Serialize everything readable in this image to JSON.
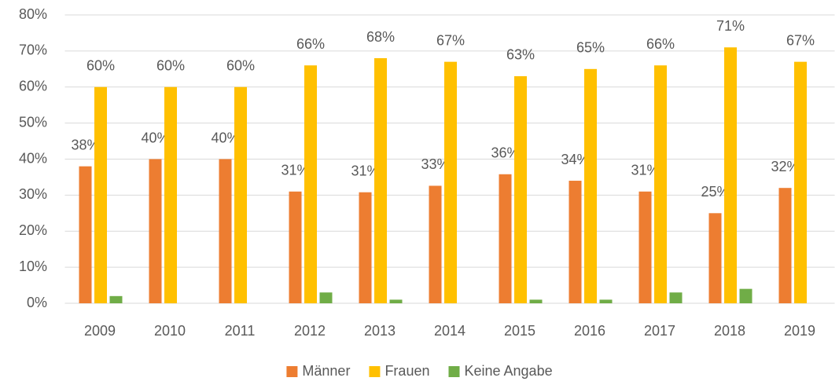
{
  "chart_data": {
    "type": "bar",
    "categories": [
      "2009",
      "2010",
      "2011",
      "2012",
      "2013",
      "2014",
      "2015",
      "2016",
      "2017",
      "2018",
      "2019"
    ],
    "series": [
      {
        "name": "Männer",
        "color": "#ed7d31",
        "values": [
          38,
          40,
          40,
          31,
          30.8,
          32.6,
          35.8,
          34,
          31,
          25,
          32
        ],
        "value_labels": [
          "38%",
          "40%",
          "40%",
          "31%",
          "31%",
          "33%",
          "36%",
          "34%",
          "31%",
          "25%",
          "32%"
        ]
      },
      {
        "name": "Frauen",
        "color": "#ffc000",
        "values": [
          60,
          60,
          60,
          66,
          68,
          67,
          63,
          65,
          66,
          71,
          67
        ],
        "value_labels": [
          "60%",
          "60%",
          "60%",
          "66%",
          "68%",
          "67%",
          "63%",
          "65%",
          "66%",
          "71%",
          "67%"
        ]
      },
      {
        "name": "Keine Angabe",
        "color": "#70ad47",
        "values": [
          2,
          0,
          0,
          3,
          1,
          0,
          1,
          1,
          3,
          4,
          0
        ]
      }
    ],
    "ylim": [
      0,
      80
    ],
    "yticks": [
      {
        "value": 0,
        "label": "0%"
      },
      {
        "value": 10,
        "label": "10%"
      },
      {
        "value": 20,
        "label": "20%"
      },
      {
        "value": 30,
        "label": "30%"
      },
      {
        "value": 40,
        "label": "40%"
      },
      {
        "value": 50,
        "label": "50%"
      },
      {
        "value": 60,
        "label": "60%"
      },
      {
        "value": 70,
        "label": "70%"
      },
      {
        "value": 80,
        "label": "80%"
      }
    ],
    "grid": true,
    "legend": "bottom"
  }
}
